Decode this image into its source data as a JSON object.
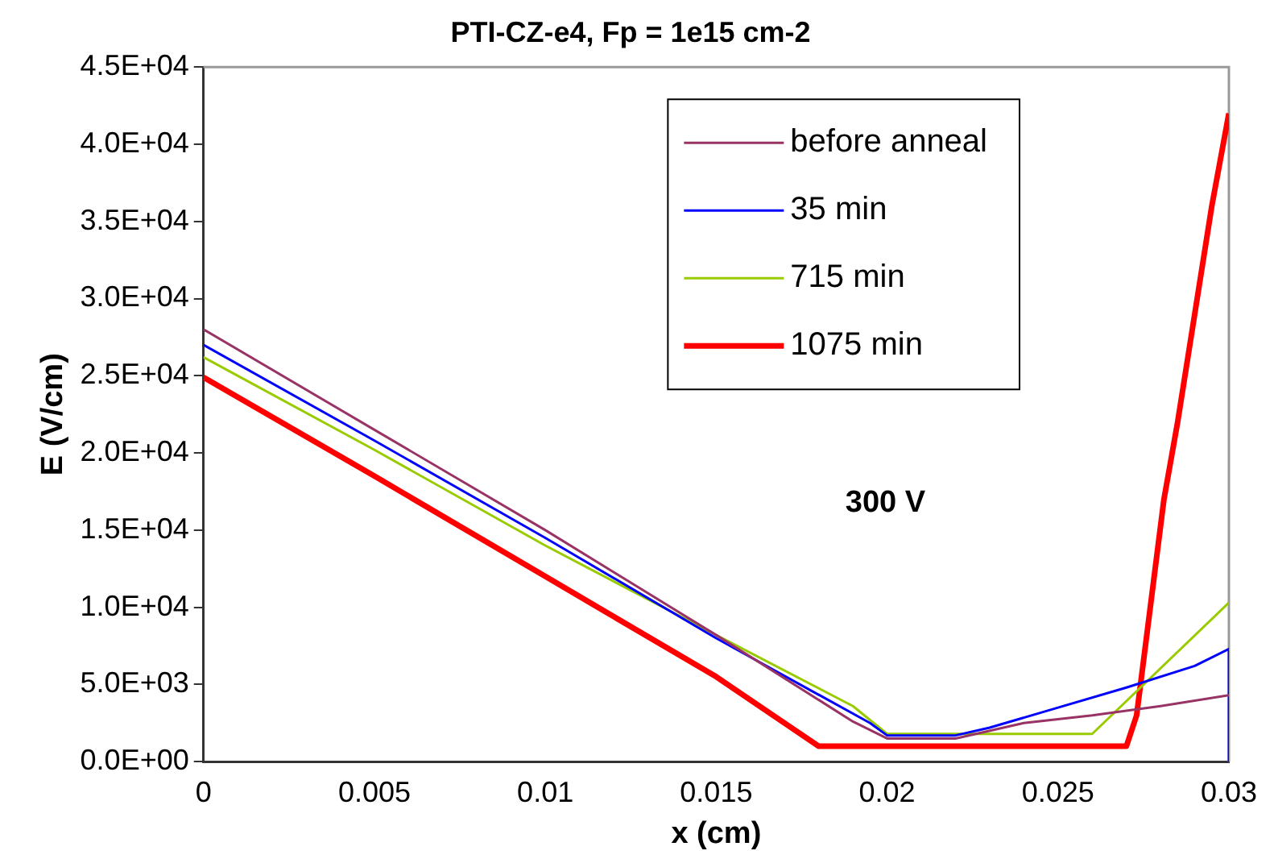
{
  "chart_data": {
    "type": "line",
    "title": "PTI-CZ-e4, Fp = 1e15 cm-2",
    "xlabel": "x (cm)",
    "ylabel": "E (V/cm)",
    "xlim": [
      0,
      0.03
    ],
    "xticks": [
      0,
      0.005,
      0.01,
      0.015,
      0.02,
      0.025,
      0.03
    ],
    "ylim": [
      0,
      45000
    ],
    "yticks": [
      {
        "value": 0,
        "label": "0.0E+00"
      },
      {
        "value": 5000,
        "label": "5.0E+03"
      },
      {
        "value": 10000,
        "label": "1.0E+04"
      },
      {
        "value": 15000,
        "label": "1.5E+04"
      },
      {
        "value": 20000,
        "label": "2.0E+04"
      },
      {
        "value": 25000,
        "label": "2.5E+04"
      },
      {
        "value": 30000,
        "label": "3.0E+04"
      },
      {
        "value": 35000,
        "label": "3.5E+04"
      },
      {
        "value": 40000,
        "label": "4.0E+04"
      },
      {
        "value": 45000,
        "label": "4.5E+04"
      }
    ],
    "grid": false,
    "legend": "top right",
    "marker": "none",
    "line_style": "solid",
    "annotations": [
      "300 V"
    ],
    "series": [
      {
        "name": "before anneal",
        "color": "#993366",
        "x": [
          0,
          0.005,
          0.01,
          0.015,
          0.019,
          0.02,
          0.022,
          0.024,
          0.026,
          0.028,
          0.03
        ],
        "values": [
          28000,
          21500,
          15000,
          8200,
          2600,
          1500,
          1500,
          2500,
          3000,
          3600,
          4300
        ]
      },
      {
        "name": "35 min",
        "color": "#0000ff",
        "x": [
          0,
          0.005,
          0.01,
          0.015,
          0.0195,
          0.02,
          0.022,
          0.023,
          0.025,
          0.027,
          0.029,
          0.03,
          0.03
        ],
        "values": [
          27000,
          20800,
          14500,
          8000,
          2500,
          1700,
          1700,
          2200,
          3500,
          4800,
          6200,
          7300,
          0
        ]
      },
      {
        "name": "715 min",
        "color": "#99cc00",
        "x": [
          0,
          0.005,
          0.01,
          0.015,
          0.019,
          0.02,
          0.026,
          0.03
        ],
        "values": [
          26200,
          20200,
          14000,
          8200,
          3600,
          1800,
          1800,
          10300
        ]
      },
      {
        "name": "1075 min",
        "color": "#ff0000",
        "x": [
          0,
          0.005,
          0.01,
          0.015,
          0.017,
          0.018,
          0.027,
          0.0273,
          0.0281,
          0.0285,
          0.029,
          0.0295,
          0.03
        ],
        "values": [
          24900,
          18500,
          12000,
          5500,
          2500,
          1000,
          1000,
          3000,
          17000,
          22000,
          29000,
          36000,
          42000
        ]
      }
    ]
  }
}
